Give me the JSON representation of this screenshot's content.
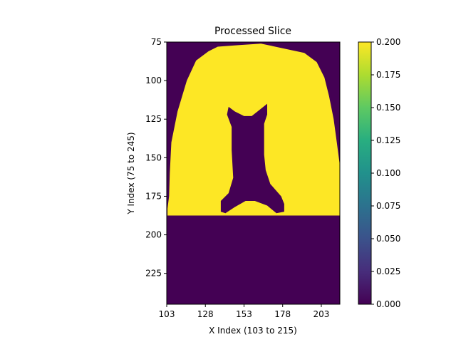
{
  "chart_data": {
    "type": "heatmap",
    "title": "Processed Slice",
    "xlabel": "X Index (103 to 215)",
    "ylabel": "Y Index (75 to 245)",
    "xlim": [
      103,
      215
    ],
    "ylim": [
      245,
      75
    ],
    "x_ticks": [
      103,
      128,
      153,
      178,
      203
    ],
    "y_ticks": [
      75,
      100,
      125,
      150,
      175,
      200,
      225
    ],
    "colorbar": {
      "range": [
        0.0,
        0.2
      ],
      "ticks": [
        "0.000",
        "0.025",
        "0.050",
        "0.075",
        "0.100",
        "0.125",
        "0.150",
        "0.175",
        "0.200"
      ],
      "colormap": "viridis"
    },
    "mask_value": 0.2,
    "background_value": 0.0,
    "colors": {
      "low": "#440154",
      "high": "#fde725"
    },
    "outer_region": [
      [
        103.5,
        187.5
      ],
      [
        215,
        187.5
      ],
      [
        215,
        155
      ],
      [
        213,
        140
      ],
      [
        211,
        125
      ],
      [
        208,
        110
      ],
      [
        205,
        98
      ],
      [
        200,
        88
      ],
      [
        192,
        82
      ],
      [
        178,
        79
      ],
      [
        164,
        76
      ],
      [
        150,
        77
      ],
      [
        136,
        78
      ],
      [
        130,
        81
      ],
      [
        122,
        87
      ],
      [
        116,
        100
      ],
      [
        110,
        120
      ],
      [
        106,
        140
      ],
      [
        105,
        160
      ],
      [
        104.5,
        175
      ],
      [
        103.5,
        183
      ]
    ],
    "inner_region": [
      [
        143,
        117
      ],
      [
        147,
        120
      ],
      [
        153,
        123
      ],
      [
        158,
        123
      ],
      [
        163,
        119
      ],
      [
        168,
        115
      ],
      [
        168,
        122
      ],
      [
        166,
        128
      ],
      [
        166,
        148
      ],
      [
        167,
        158
      ],
      [
        170,
        167
      ],
      [
        177,
        175
      ],
      [
        179,
        180
      ],
      [
        179,
        185
      ],
      [
        174,
        186
      ],
      [
        168,
        181
      ],
      [
        160,
        178
      ],
      [
        154,
        178
      ],
      [
        147,
        182
      ],
      [
        141,
        186
      ],
      [
        138,
        185
      ],
      [
        138,
        178
      ],
      [
        143,
        173
      ],
      [
        146,
        163
      ],
      [
        145,
        145
      ],
      [
        145,
        130
      ],
      [
        142,
        122
      ]
    ]
  }
}
